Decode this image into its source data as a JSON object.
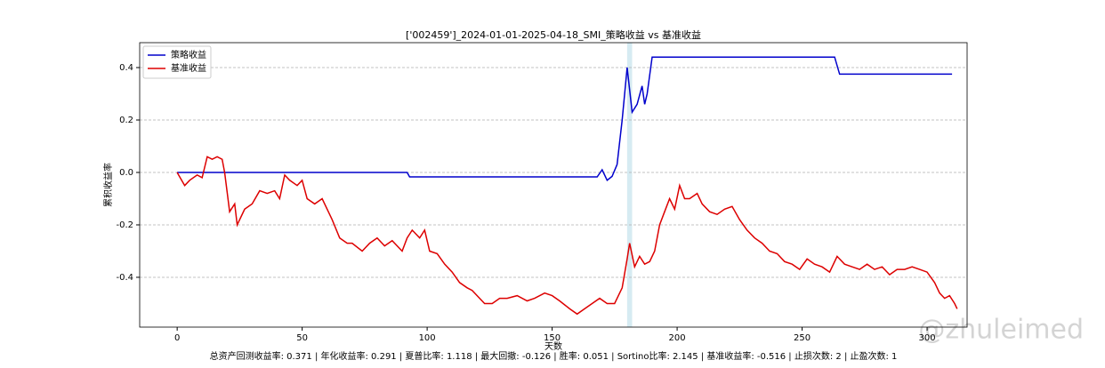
{
  "chart_data": {
    "type": "line",
    "title": "['002459']_2024-01-01-2025-04-18_SMI_策略收益 vs 基准收益",
    "xlabel": "天数",
    "ylabel": "累积收益率",
    "footer": "总资产回测收益率: 0.371 | 年化收益率: 0.291 | 夏普比率: 1.118 | 最大回撤: -0.126 | 胜率: 0.051 | Sortino比率: 2.145 | 基准收益率: -0.516 | 止损次数: 2 | 止盈次数: 1",
    "watermark": "@zhuleimed",
    "xlim": [
      -15,
      316
    ],
    "xticks": [
      0,
      50,
      100,
      150,
      200,
      250,
      300
    ],
    "ylim": [
      -0.59,
      0.495
    ],
    "yticks": [
      0.4,
      0.2,
      {
        "value": 0,
        "label": "0.0"
      },
      -0.2,
      -0.4
    ],
    "grid": true,
    "legend": "upper left",
    "highlight_span": [
      180,
      182
    ],
    "highlight_color": "#add8e6",
    "series": [
      {
        "name": "策略收益",
        "color": "#0000cc",
        "x": [
          0,
          92,
          93,
          168,
          170,
          172,
          174,
          176,
          178,
          180,
          182,
          184,
          186,
          187,
          188,
          190,
          263,
          265,
          310
        ],
        "values": [
          0,
          0,
          -0.017,
          -0.017,
          0.01,
          -0.03,
          -0.015,
          0.03,
          0.2,
          0.4,
          0.23,
          0.26,
          0.33,
          0.26,
          0.3,
          0.44,
          0.44,
          0.375,
          0.375
        ]
      },
      {
        "name": "基准收益",
        "color": "#dd0000",
        "x": [
          0,
          3,
          5,
          8,
          10,
          12,
          14,
          16,
          18,
          19,
          21,
          23,
          24,
          27,
          30,
          33,
          36,
          39,
          41,
          43,
          45,
          48,
          50,
          52,
          55,
          58,
          62,
          65,
          68,
          70,
          74,
          77,
          80,
          83,
          86,
          90,
          92,
          94,
          97,
          99,
          101,
          104,
          107,
          110,
          113,
          116,
          118,
          121,
          123,
          126,
          129,
          132,
          136,
          140,
          143,
          147,
          150,
          153,
          157,
          160,
          163,
          166,
          169,
          172,
          175,
          178,
          180,
          181,
          183,
          185,
          187,
          189,
          191,
          193,
          195,
          197,
          199,
          201,
          203,
          205,
          208,
          210,
          213,
          216,
          219,
          222,
          225,
          228,
          231,
          234,
          237,
          240,
          243,
          246,
          249,
          252,
          255,
          258,
          261,
          264,
          267,
          270,
          273,
          276,
          279,
          282,
          285,
          288,
          291,
          294,
          297,
          300,
          303,
          305,
          307,
          309,
          311,
          312
        ],
        "values": [
          0,
          -0.05,
          -0.03,
          -0.01,
          -0.02,
          0.06,
          0.05,
          0.06,
          0.05,
          0.0,
          -0.15,
          -0.12,
          -0.2,
          -0.14,
          -0.12,
          -0.07,
          -0.08,
          -0.07,
          -0.1,
          -0.01,
          -0.03,
          -0.05,
          -0.03,
          -0.1,
          -0.12,
          -0.1,
          -0.18,
          -0.25,
          -0.27,
          -0.27,
          -0.3,
          -0.27,
          -0.25,
          -0.28,
          -0.26,
          -0.3,
          -0.25,
          -0.22,
          -0.25,
          -0.22,
          -0.3,
          -0.31,
          -0.35,
          -0.38,
          -0.42,
          -0.44,
          -0.45,
          -0.48,
          -0.5,
          -0.5,
          -0.48,
          -0.48,
          -0.47,
          -0.49,
          -0.48,
          -0.46,
          -0.47,
          -0.49,
          -0.52,
          -0.54,
          -0.52,
          -0.5,
          -0.48,
          -0.5,
          -0.5,
          -0.44,
          -0.33,
          -0.27,
          -0.36,
          -0.32,
          -0.35,
          -0.34,
          -0.3,
          -0.2,
          -0.15,
          -0.1,
          -0.14,
          -0.05,
          -0.1,
          -0.1,
          -0.08,
          -0.12,
          -0.15,
          -0.16,
          -0.14,
          -0.13,
          -0.18,
          -0.22,
          -0.25,
          -0.27,
          -0.3,
          -0.31,
          -0.34,
          -0.35,
          -0.37,
          -0.33,
          -0.35,
          -0.36,
          -0.38,
          -0.32,
          -0.35,
          -0.36,
          -0.37,
          -0.35,
          -0.37,
          -0.36,
          -0.39,
          -0.37,
          -0.37,
          -0.36,
          -0.37,
          -0.38,
          -0.42,
          -0.46,
          -0.48,
          -0.47,
          -0.5,
          -0.52
        ]
      }
    ]
  }
}
